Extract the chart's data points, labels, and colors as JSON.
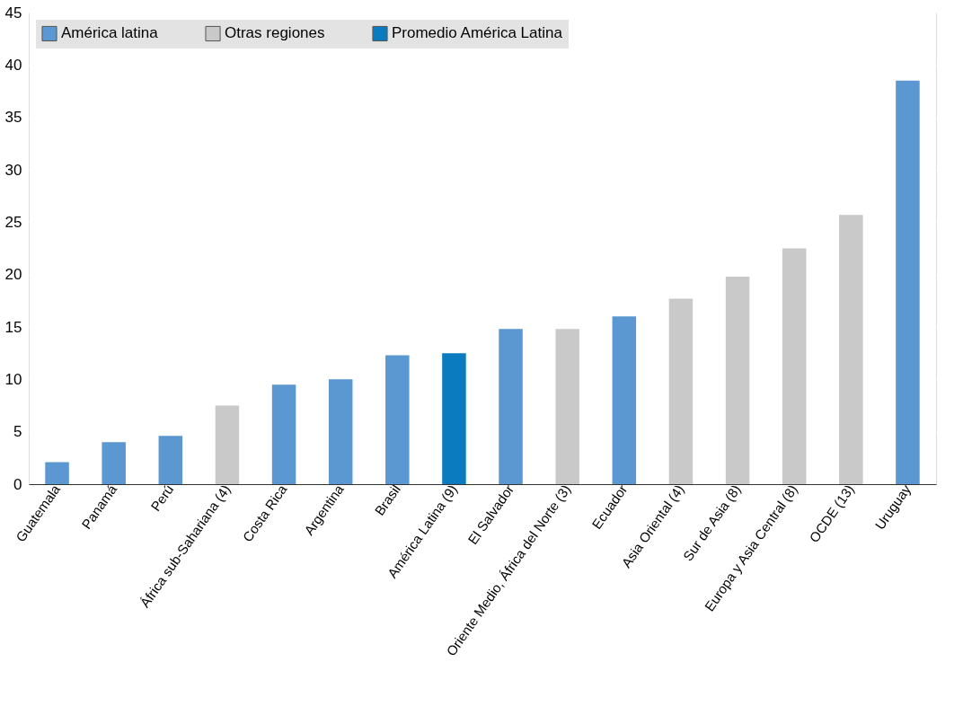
{
  "chart_data": {
    "type": "bar",
    "categories": [
      "Guatemala",
      "Panamá",
      "Perú",
      "África sub-Sahariana (4)",
      "Costa Rica",
      "Argentina",
      "Brasil",
      "América Latina (9)",
      "El Salvador",
      "Oriente Medio, África del Norte (3)",
      "Ecuador",
      "Asia Oriental (4)",
      "Sur de Asia (8)",
      "Europa y Asia Central (8)",
      "OCDE (13)",
      "Uruguay"
    ],
    "series": [
      {
        "name": "América latina",
        "color": "#5b97d1",
        "values": [
          2.1,
          4.0,
          4.6,
          null,
          9.5,
          10.0,
          12.3,
          null,
          14.8,
          null,
          16.0,
          null,
          null,
          null,
          null,
          38.5
        ]
      },
      {
        "name": "Otras regiones",
        "color": "#c9c9c9",
        "values": [
          null,
          null,
          null,
          7.5,
          null,
          null,
          null,
          null,
          null,
          14.8,
          null,
          17.7,
          19.8,
          22.5,
          25.7,
          null
        ]
      },
      {
        "name": "Promedio América Latina",
        "color": "#0b7bc0",
        "values": [
          null,
          null,
          null,
          null,
          null,
          null,
          null,
          12.5,
          null,
          null,
          null,
          null,
          null,
          null,
          null,
          null
        ]
      }
    ],
    "ylim": [
      0,
      45
    ],
    "yticks": [
      0,
      5,
      10,
      15,
      20,
      25,
      30,
      35,
      40,
      45
    ],
    "grid": true,
    "legend": "top left"
  }
}
